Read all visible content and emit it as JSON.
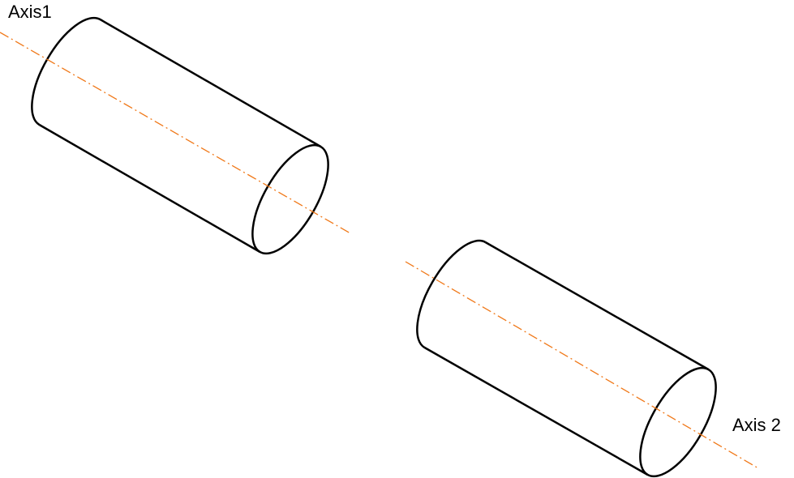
{
  "axes": [
    {
      "label": "Axis1"
    },
    {
      "label": "Axis 2"
    }
  ]
}
